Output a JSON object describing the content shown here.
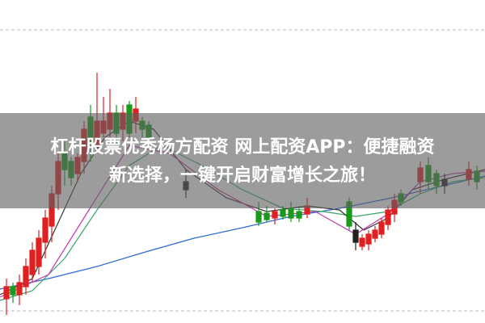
{
  "banner": {
    "lines": [
      "杠杆股票优秀杨方配资 网上配资APP：便捷融资",
      "新选择，一键开启财富增长之旅！"
    ]
  }
}
